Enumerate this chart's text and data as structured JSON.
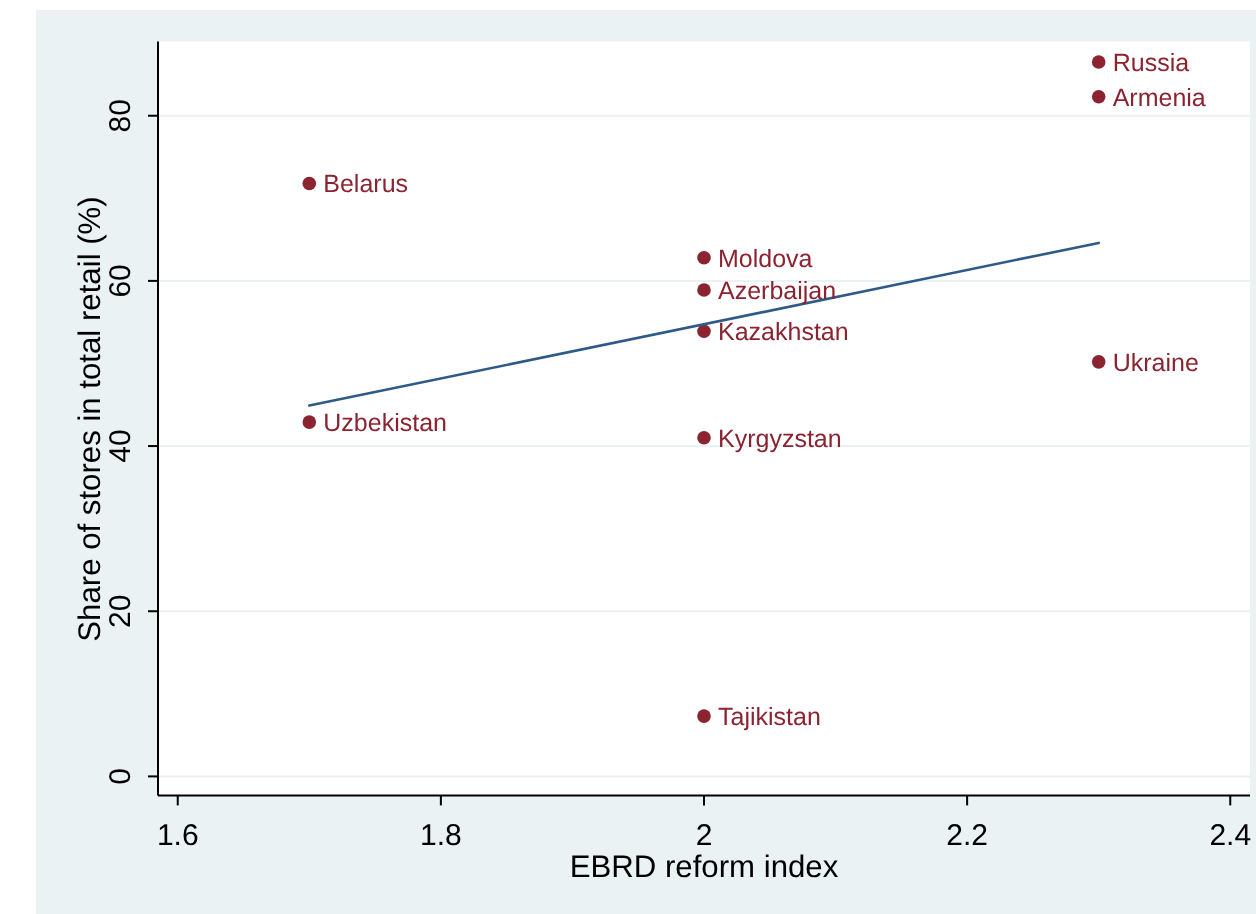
{
  "chart_data": {
    "type": "scatter",
    "xlabel": "EBRD reform index",
    "ylabel": "Share of stores in total retail (%)",
    "xlim": [
      1.585,
      2.415
    ],
    "ylim": [
      -2.3,
      89
    ],
    "xticks": [
      1.6,
      1.8,
      2,
      2.2,
      2.4
    ],
    "yticks": [
      0,
      20,
      40,
      60,
      80
    ],
    "grid": "y",
    "series": [
      {
        "color": "#8b2331",
        "marker": "circle",
        "x": [
          2.3,
          2.3,
          1.7,
          2,
          2,
          2,
          2.3,
          1.7,
          2,
          2
        ],
        "values": [
          86.5,
          82.3,
          71.8,
          62.8,
          58.9,
          53.9,
          50.2,
          42.9,
          41.0,
          7.3
        ]
      },
      {
        "type": "line",
        "color": "#2e5a87",
        "x": [
          1.7,
          2.3
        ],
        "values": [
          44.9,
          64.6
        ]
      }
    ],
    "annotations": [
      {
        "text": "Russia",
        "x": 2.3,
        "y": 86.5
      },
      {
        "text": "Armenia",
        "x": 2.3,
        "y": 82.3
      },
      {
        "text": "Belarus",
        "x": 1.7,
        "y": 71.8
      },
      {
        "text": "Moldova",
        "x": 2,
        "y": 62.8
      },
      {
        "text": "Azerbaijan",
        "x": 2,
        "y": 58.9
      },
      {
        "text": "Kazakhstan",
        "x": 2,
        "y": 53.9
      },
      {
        "text": "Ukraine",
        "x": 2.3,
        "y": 50.2
      },
      {
        "text": "Uzbekistan",
        "x": 1.7,
        "y": 42.9
      },
      {
        "text": "Kyrgyzstan",
        "x": 2,
        "y": 41.0
      },
      {
        "text": "Tajikistan",
        "x": 2,
        "y": 7.3
      }
    ]
  }
}
